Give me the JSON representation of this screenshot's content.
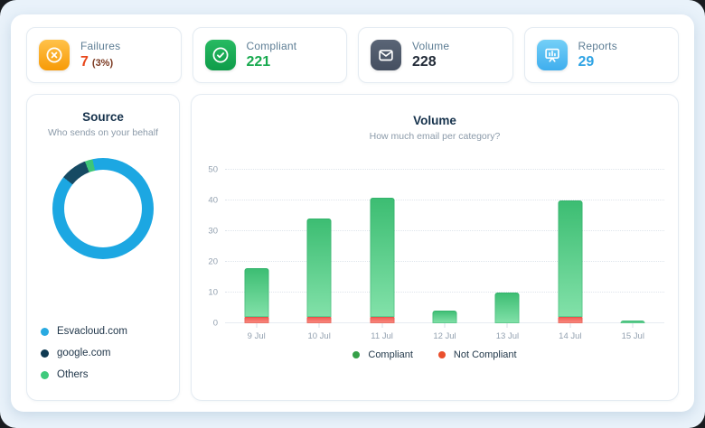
{
  "theme": {
    "backdrop_color": "#191c20",
    "frame_color": "#e9f2fa",
    "panel_color": "#ffffff"
  },
  "stats": [
    {
      "label": "Failures",
      "value": "7",
      "suffix": "(3%)",
      "value_color": "#e8471b",
      "suffix_color": "#7c3a22",
      "icon": "x-circle-icon",
      "icon_bg": [
        "#ffc24a",
        "#f79a07"
      ]
    },
    {
      "label": "Compliant",
      "value": "221",
      "value_color": "#17a94e",
      "icon": "check-circle-icon",
      "icon_bg": [
        "#27ba62",
        "#0e9c49"
      ]
    },
    {
      "label": "Volume",
      "value": "228",
      "value_color": "#222b38",
      "icon": "envelope-icon",
      "icon_bg": [
        "#5a6576",
        "#454f60"
      ]
    },
    {
      "label": "Reports",
      "value": "29",
      "value_color": "#2ea3e4",
      "icon": "presentation-chart-icon",
      "icon_bg": [
        "#74d0f7",
        "#3faeee"
      ]
    }
  ],
  "chart_data": [
    {
      "type": "pie",
      "variant": "donut",
      "title": "Source",
      "subtitle": "Who sends on your behalf",
      "start_angle_deg": -12,
      "legend_position": "bottom-left",
      "segments": [
        {
          "label": "Esvacloud.com",
          "percent": 89,
          "color": "#1ca7e2",
          "dot_color": "#29aae1"
        },
        {
          "label": "google.com",
          "percent": 8.5,
          "color": "#164a63",
          "dot_color": "#0f3a52"
        },
        {
          "label": "Others",
          "percent": 2.5,
          "color": "#3ec577",
          "dot_color": "#3fca7c"
        }
      ]
    },
    {
      "type": "bar",
      "stacked": true,
      "title": "Volume",
      "subtitle": "How much email per category?",
      "categories": [
        "9 Jul",
        "10 Jul",
        "11 Jul",
        "12 Jul",
        "13 Jul",
        "14 Jul",
        "15 Jul"
      ],
      "series": [
        {
          "name": "Compliant",
          "values": [
            16,
            32,
            39,
            4,
            10,
            38,
            1
          ],
          "gradient": [
            "#3cbd72",
            "#82e1a9"
          ],
          "legend_dot_color": "#35a048"
        },
        {
          "name": "Not Compliant",
          "values": [
            2,
            2,
            2,
            0,
            0,
            2,
            0
          ],
          "gradient": [
            "#f05a50",
            "#f98e84"
          ],
          "legend_dot_color": "#ea4f2d"
        }
      ],
      "xlabel": "",
      "ylabel": "",
      "ylim": [
        0,
        50
      ],
      "yticks": [
        0,
        10,
        20,
        30,
        40,
        50
      ],
      "grid": "dotted-horizontal",
      "legend_position": "bottom-center"
    }
  ]
}
